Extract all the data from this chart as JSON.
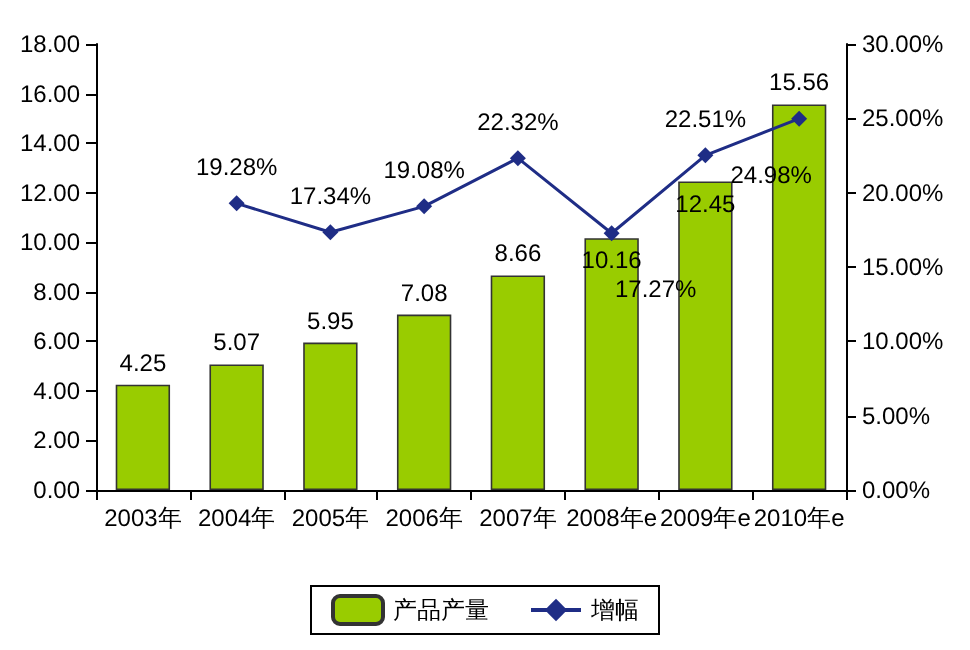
{
  "chart_data": {
    "type": "bar",
    "categories": [
      "2003年",
      "2004年",
      "2005年",
      "2006年",
      "2007年",
      "2008年e",
      "2009年e",
      "2010年e"
    ],
    "series": [
      {
        "name": "产品产量",
        "color": "#99cc00",
        "values": [
          4.25,
          5.07,
          5.95,
          7.08,
          8.66,
          10.16,
          12.45,
          15.56
        ],
        "data_labels": true
      },
      {
        "name": "增幅",
        "type": "line",
        "axis": "y2",
        "color": "#1f2d86",
        "marker": "diamond",
        "values": [
          null,
          19.28,
          17.34,
          19.08,
          22.32,
          17.27,
          22.51,
          24.98
        ],
        "value_labels": [
          null,
          "19.28%",
          "17.34%",
          "19.08%",
          "22.32%",
          "17.27%",
          "22.51%",
          "24.98%"
        ]
      }
    ],
    "ylim": [
      0,
      18
    ],
    "yticks": [
      {
        "value": 0,
        "label": "0.00"
      },
      {
        "value": 2,
        "label": "2.00"
      },
      {
        "value": 4,
        "label": "4.00"
      },
      {
        "value": 6,
        "label": "6.00"
      },
      {
        "value": 8,
        "label": "8.00"
      },
      {
        "value": 10,
        "label": "10.00"
      },
      {
        "value": 12,
        "label": "12.00"
      },
      {
        "value": 14,
        "label": "14.00"
      },
      {
        "value": 16,
        "label": "16.00"
      },
      {
        "value": 18,
        "label": "18.00"
      }
    ],
    "y2lim": [
      0,
      30
    ],
    "y2ticks": [
      {
        "value": 0,
        "label": "0.00%"
      },
      {
        "value": 5,
        "label": "5.00%"
      },
      {
        "value": 10,
        "label": "10.00%"
      },
      {
        "value": 15,
        "label": "15.00%"
      },
      {
        "value": 20,
        "label": "20.00%"
      },
      {
        "value": 25,
        "label": "25.00%"
      },
      {
        "value": 30,
        "label": "30.00%"
      }
    ],
    "legend": "bottom",
    "grid": false
  }
}
